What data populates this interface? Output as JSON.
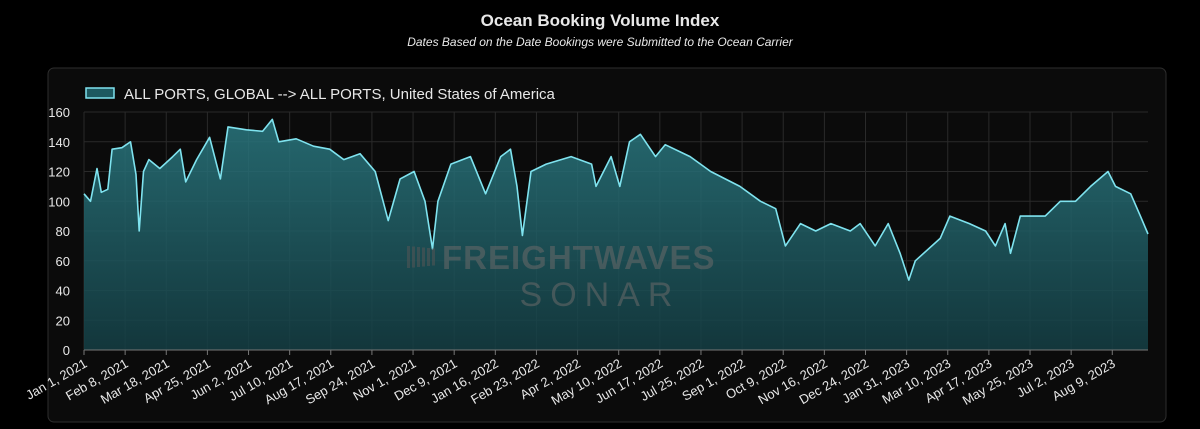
{
  "chart_data": {
    "type": "area",
    "title": "Ocean Booking Volume Index",
    "subtitle": "Dates Based on the Date Bookings were Submitted to the Ocean Carrier",
    "watermark": [
      "FREIGHTWAVES",
      "SONAR"
    ],
    "grid": true,
    "legend": "top-left",
    "xlim": [
      "2021-01-01",
      "2023-09-11"
    ],
    "ylim": [
      0,
      160
    ],
    "yticks": [
      0,
      20,
      40,
      60,
      80,
      100,
      120,
      140,
      160
    ],
    "xticks": [
      {
        "value": "2021-01-01",
        "label": "Jan 1, 2021"
      },
      {
        "value": "2021-02-08",
        "label": "Feb 8, 2021"
      },
      {
        "value": "2021-03-18",
        "label": "Mar 18, 2021"
      },
      {
        "value": "2021-04-25",
        "label": "Apr 25, 2021"
      },
      {
        "value": "2021-06-02",
        "label": "Jun 2, 2021"
      },
      {
        "value": "2021-07-10",
        "label": "Jul 10, 2021"
      },
      {
        "value": "2021-08-17",
        "label": "Aug 17, 2021"
      },
      {
        "value": "2021-09-24",
        "label": "Sep 24, 2021"
      },
      {
        "value": "2021-11-01",
        "label": "Nov 1, 2021"
      },
      {
        "value": "2021-12-09",
        "label": "Dec 9, 2021"
      },
      {
        "value": "2022-01-16",
        "label": "Jan 16, 2022"
      },
      {
        "value": "2022-02-23",
        "label": "Feb 23, 2022"
      },
      {
        "value": "2022-04-02",
        "label": "Apr 2, 2022"
      },
      {
        "value": "2022-05-10",
        "label": "May 10, 2022"
      },
      {
        "value": "2022-06-17",
        "label": "Jun 17, 2022"
      },
      {
        "value": "2022-07-25",
        "label": "Jul 25, 2022"
      },
      {
        "value": "2022-09-01",
        "label": "Sep 1, 2022"
      },
      {
        "value": "2022-10-09",
        "label": "Oct 9, 2022"
      },
      {
        "value": "2022-11-16",
        "label": "Nov 16, 2022"
      },
      {
        "value": "2022-12-24",
        "label": "Dec 24, 2022"
      },
      {
        "value": "2023-01-31",
        "label": "Jan 31, 2023"
      },
      {
        "value": "2023-03-10",
        "label": "Mar 10, 2023"
      },
      {
        "value": "2023-04-17",
        "label": "Apr 17, 2023"
      },
      {
        "value": "2023-05-25",
        "label": "May 25, 2023"
      },
      {
        "value": "2023-07-02",
        "label": "Jul 2, 2023"
      },
      {
        "value": "2023-08-09",
        "label": "Aug 9, 2023"
      }
    ],
    "x": [
      "2021-01-01",
      "2021-01-07",
      "2021-01-13",
      "2021-01-17",
      "2021-01-23",
      "2021-01-27",
      "2021-02-05",
      "2021-02-13",
      "2021-02-18",
      "2021-02-21",
      "2021-02-25",
      "2021-03-02",
      "2021-03-12",
      "2021-03-24",
      "2021-03-31",
      "2021-04-05",
      "2021-04-15",
      "2021-04-27",
      "2021-05-07",
      "2021-05-14",
      "2021-05-31",
      "2021-06-15",
      "2021-06-24",
      "2021-06-30",
      "2021-07-16",
      "2021-08-01",
      "2021-08-16",
      "2021-08-29",
      "2021-09-13",
      "2021-09-27",
      "2021-10-09",
      "2021-10-20",
      "2021-11-02",
      "2021-11-12",
      "2021-11-19",
      "2021-11-24",
      "2021-12-06",
      "2021-12-24",
      "2022-01-07",
      "2022-01-21",
      "2022-01-30",
      "2022-02-05",
      "2022-02-10",
      "2022-02-18",
      "2022-03-04",
      "2022-03-27",
      "2022-04-15",
      "2022-04-19",
      "2022-05-03",
      "2022-05-11",
      "2022-05-20",
      "2022-05-30",
      "2022-06-13",
      "2022-06-22",
      "2022-07-15",
      "2022-08-03",
      "2022-08-30",
      "2022-09-18",
      "2022-10-02",
      "2022-10-11",
      "2022-10-25",
      "2022-11-08",
      "2022-11-22",
      "2022-12-10",
      "2022-12-19",
      "2023-01-02",
      "2023-01-14",
      "2023-01-25",
      "2023-02-02",
      "2023-02-08",
      "2023-03-03",
      "2023-03-12",
      "2023-03-30",
      "2023-04-14",
      "2023-04-23",
      "2023-05-02",
      "2023-05-07",
      "2023-05-16",
      "2023-06-08",
      "2023-06-22",
      "2023-07-06",
      "2023-07-20",
      "2023-08-05",
      "2023-08-12",
      "2023-08-26",
      "2023-09-04",
      "2023-09-11"
    ],
    "series": [
      {
        "name": "ALL PORTS, GLOBAL --> ALL PORTS, United States of America",
        "color": "#7fe3ef",
        "fill": "#1d5960",
        "values": [
          105,
          100,
          122,
          106,
          108,
          135,
          136,
          140,
          118,
          80,
          120,
          128,
          122,
          130,
          135,
          113,
          128,
          143,
          115,
          150,
          148,
          147,
          155,
          140,
          142,
          137,
          135,
          128,
          132,
          120,
          87,
          115,
          120,
          100,
          68,
          100,
          125,
          130,
          105,
          130,
          135,
          110,
          77,
          120,
          125,
          130,
          125,
          110,
          130,
          110,
          140,
          145,
          130,
          138,
          130,
          120,
          110,
          100,
          95,
          70,
          85,
          80,
          85,
          80,
          85,
          70,
          85,
          65,
          47,
          60,
          75,
          90,
          85,
          80,
          70,
          85,
          65,
          90,
          90,
          100,
          100,
          110,
          120,
          110,
          105,
          90,
          78
        ]
      }
    ]
  }
}
